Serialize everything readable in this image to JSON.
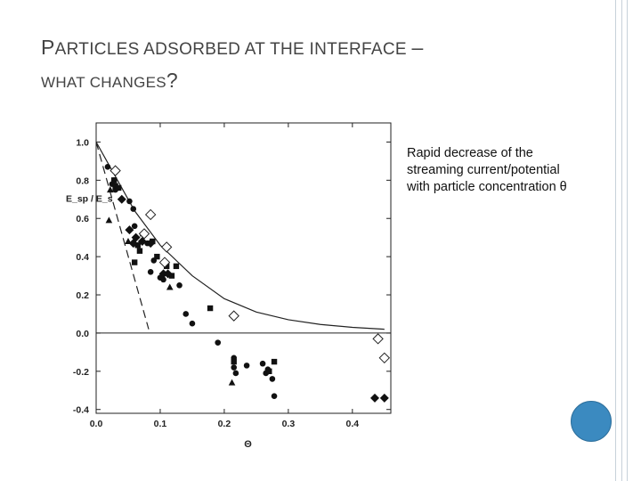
{
  "slide": {
    "title_line1_first": "P",
    "title_line1_rest": "ARTICLES ADSORBED AT THE INTERFACE ",
    "title_line1_dash": "–",
    "title_line2_rest": "WHAT CHANGES",
    "title_line2_q": "?",
    "caption_line1": "Rapid decrease of the",
    "caption_line2": "streaming current/potential",
    "caption_line3": "with particle concentration θ",
    "accent_color": "#3b8ac0"
  },
  "chart_data": {
    "type": "scatter",
    "title": "",
    "xlabel": "Θ",
    "ylabel": "E_sp / E_s",
    "xlim": [
      0,
      0.46
    ],
    "ylim": [
      -0.42,
      1.1
    ],
    "xticks": [
      "0.0",
      "0.1",
      "0.2",
      "0.3",
      "0.4"
    ],
    "xtick_values": [
      0.0,
      0.1,
      0.2,
      0.3,
      0.4
    ],
    "yticks": [
      "1.0",
      "0.8",
      "0.6",
      "0.4",
      "0.2",
      "0.0",
      "-0.2",
      "-0.4"
    ],
    "ytick_values": [
      1.0,
      0.8,
      0.6,
      0.4,
      0.2,
      0.0,
      -0.2,
      -0.4
    ],
    "series": [
      {
        "name": "filled circles",
        "marker": "circle",
        "x": [
          0.018,
          0.025,
          0.028,
          0.03,
          0.052,
          0.058,
          0.06,
          0.08,
          0.085,
          0.09,
          0.1,
          0.105,
          0.13,
          0.14,
          0.15,
          0.19,
          0.215,
          0.215,
          0.218,
          0.235,
          0.26,
          0.265,
          0.268,
          0.275,
          0.278
        ],
        "y": [
          0.87,
          0.78,
          0.8,
          0.75,
          0.69,
          0.65,
          0.56,
          0.47,
          0.32,
          0.38,
          0.29,
          0.28,
          0.25,
          0.1,
          0.05,
          -0.05,
          -0.13,
          -0.18,
          -0.21,
          -0.17,
          -0.16,
          -0.21,
          -0.19,
          -0.24,
          -0.33
        ]
      },
      {
        "name": "filled squares",
        "marker": "square",
        "x": [
          0.028,
          0.03,
          0.035,
          0.06,
          0.065,
          0.068,
          0.088,
          0.095,
          0.11,
          0.118,
          0.125,
          0.178,
          0.215,
          0.27,
          0.278
        ],
        "y": [
          0.8,
          0.77,
          0.76,
          0.37,
          0.46,
          0.43,
          0.48,
          0.4,
          0.35,
          0.3,
          0.35,
          0.13,
          -0.15,
          -0.2,
          -0.15
        ]
      },
      {
        "name": "filled triangles",
        "marker": "triangle",
        "x": [
          0.022,
          0.02,
          0.05,
          0.073,
          0.115,
          0.212
        ],
        "y": [
          0.75,
          0.59,
          0.48,
          0.52,
          0.24,
          -0.26
        ]
      },
      {
        "name": "filled diamonds",
        "marker": "diamond",
        "x": [
          0.04,
          0.052,
          0.058,
          0.062,
          0.072,
          0.085,
          0.105,
          0.112,
          0.435,
          0.45
        ],
        "y": [
          0.7,
          0.54,
          0.47,
          0.5,
          0.48,
          0.47,
          0.31,
          0.31,
          -0.34,
          -0.34
        ]
      },
      {
        "name": "open diamonds",
        "marker": "open-diamond",
        "x": [
          0.03,
          0.085,
          0.075,
          0.11,
          0.107,
          0.215,
          0.44,
          0.45
        ],
        "y": [
          0.85,
          0.62,
          0.52,
          0.45,
          0.37,
          0.09,
          -0.03,
          -0.13
        ]
      }
    ],
    "lines": [
      {
        "name": "dashed linear fit",
        "style": "dashed",
        "x": [
          0.0,
          0.082
        ],
        "y": [
          1.0,
          0.02
        ]
      },
      {
        "name": "solid model curve",
        "style": "solid",
        "x": [
          0.0,
          0.03,
          0.06,
          0.1,
          0.15,
          0.2,
          0.25,
          0.3,
          0.35,
          0.4,
          0.45
        ],
        "y": [
          1.0,
          0.82,
          0.64,
          0.46,
          0.3,
          0.18,
          0.11,
          0.07,
          0.045,
          0.03,
          0.02
        ]
      }
    ]
  }
}
